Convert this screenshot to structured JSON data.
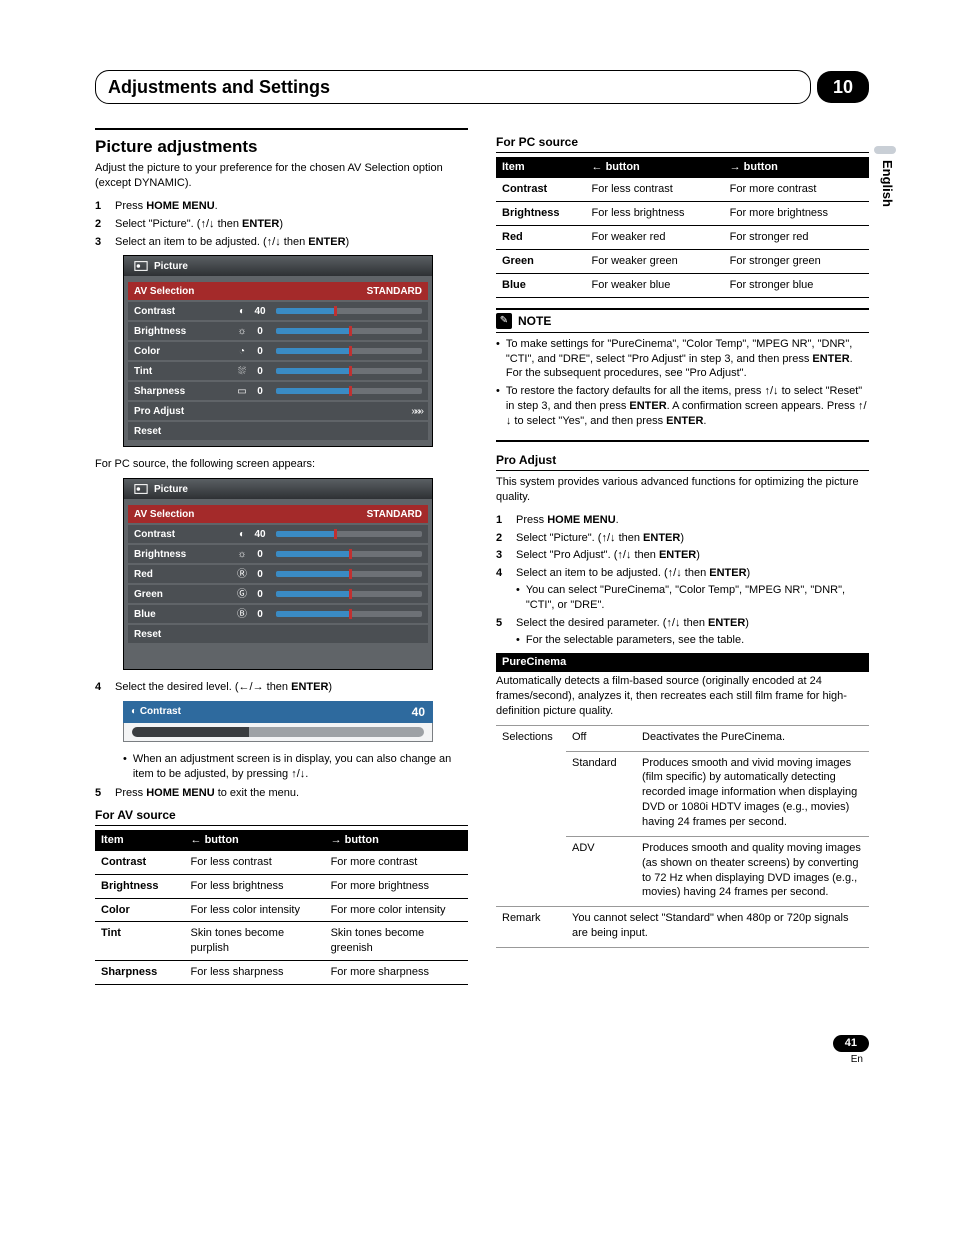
{
  "chapter": {
    "title": "Adjustments and Settings",
    "number": "10"
  },
  "language_tab": "English",
  "footer": {
    "page": "41",
    "locale": "En"
  },
  "left": {
    "section_title": "Picture adjustments",
    "intro": "Adjust the picture to your preference for the chosen AV Selection option (except DYNAMIC).",
    "steps_a": [
      {
        "n": "1",
        "pre": "Press ",
        "bold": "HOME MENU",
        "post": "."
      },
      {
        "n": "2",
        "pre": "Select \"Picture\". (",
        "arrows": "↑/↓",
        "mid": " then ",
        "bold": "ENTER",
        "post": ")"
      },
      {
        "n": "3",
        "pre": "Select an item to be adjusted. (",
        "arrows": "↑/↓",
        "mid": " then ",
        "bold": "ENTER",
        "post": ")"
      }
    ],
    "osd1": {
      "title": "Picture",
      "rows": [
        {
          "label": "AV Selection",
          "header": true,
          "right": "STANDARD"
        },
        {
          "label": "Contrast",
          "icon": "◐",
          "val": "40",
          "p": 40
        },
        {
          "label": "Brightness",
          "icon": "☼",
          "val": "0",
          "p": 50
        },
        {
          "label": "Color",
          "icon": "◔",
          "val": "0",
          "p": 50
        },
        {
          "label": "Tint",
          "icon": "⛆",
          "val": "0",
          "p": 50
        },
        {
          "label": "Sharpness",
          "icon": "▭",
          "val": "0",
          "p": 50
        },
        {
          "label": "Pro Adjust",
          "arrows": "»»»"
        },
        {
          "label": "Reset"
        }
      ]
    },
    "pc_caption": "For PC source, the following screen appears:",
    "osd2": {
      "title": "Picture",
      "rows": [
        {
          "label": "AV Selection",
          "header": true,
          "right": "STANDARD"
        },
        {
          "label": "Contrast",
          "icon": "◐",
          "val": "40",
          "p": 40
        },
        {
          "label": "Brightness",
          "icon": "☼",
          "val": "0",
          "p": 50
        },
        {
          "label": "Red",
          "icon": "Ⓡ",
          "val": "0",
          "p": 50
        },
        {
          "label": "Green",
          "icon": "Ⓖ",
          "val": "0",
          "p": 50
        },
        {
          "label": "Blue",
          "icon": "Ⓑ",
          "val": "0",
          "p": 50
        },
        {
          "label": "Reset"
        }
      ],
      "trailing_empty": true
    },
    "steps_b": [
      {
        "n": "4",
        "pre": "Select the desired level. (",
        "arrows": "←/→",
        "mid": " then ",
        "bold": "ENTER",
        "post": ")"
      }
    ],
    "big_slider": {
      "icon": "◐",
      "label": "Contrast",
      "value": "40"
    },
    "after_slider_note": "When an adjustment screen is in display, you can also change an item to be adjusted, by pressing ↑/↓.",
    "steps_c": [
      {
        "n": "5",
        "pre": "Press ",
        "bold": "HOME MENU",
        "post": " to exit the menu."
      }
    ],
    "av_table": {
      "title": "For AV source",
      "headers": [
        "Item",
        "← button",
        "→ button"
      ],
      "rows": [
        [
          "Contrast",
          "For less contrast",
          "For more contrast"
        ],
        [
          "Brightness",
          "For less brightness",
          "For more brightness"
        ],
        [
          "Color",
          "For less color intensity",
          "For more color intensity"
        ],
        [
          "Tint",
          "Skin tones become purplish",
          "Skin tones become greenish"
        ],
        [
          "Sharpness",
          "For less sharpness",
          "For more sharpness"
        ]
      ]
    }
  },
  "right": {
    "pc_table": {
      "title": "For PC source",
      "headers": [
        "Item",
        "← button",
        "→ button"
      ],
      "rows": [
        [
          "Contrast",
          "For less contrast",
          "For more contrast"
        ],
        [
          "Brightness",
          "For less brightness",
          "For more brightness"
        ],
        [
          "Red",
          "For weaker red",
          "For stronger red"
        ],
        [
          "Green",
          "For weaker green",
          "For stronger green"
        ],
        [
          "Blue",
          "For weaker blue",
          "For stronger blue"
        ]
      ]
    },
    "note_label": "NOTE",
    "notes": [
      "To make settings for \"PureCinema\", \"Color Temp\", \"MPEG NR\", \"DNR\", \"CTI\", and \"DRE\", select \"Pro Adjust\" in step 3, and then press ENTER. For the subsequent procedures, see \"Pro Adjust\".",
      "To restore the factory defaults for all the items, press ↑/↓ to select \"Reset\" in step 3, and then press ENTER. A confirmation screen appears. Press ↑/↓ to select \"Yes\", and then press ENTER."
    ],
    "proadjust": {
      "title": "Pro Adjust",
      "intro": "This system provides various advanced functions for optimizing the picture quality.",
      "steps": [
        {
          "n": "1",
          "pre": "Press ",
          "bold": "HOME MENU",
          "post": "."
        },
        {
          "n": "2",
          "pre": "Select \"Picture\". (",
          "arrows": "↑/↓",
          "mid": " then ",
          "bold": "ENTER",
          "post": ")"
        },
        {
          "n": "3",
          "pre": "Select \"Pro Adjust\". (",
          "arrows": "↑/↓",
          "mid": " then ",
          "bold": "ENTER",
          "post": ")"
        },
        {
          "n": "4",
          "pre": "Select an item to be adjusted. (",
          "arrows": "↑/↓",
          "mid": " then ",
          "bold": "ENTER",
          "post": ")",
          "sub": "You can select \"PureCinema\", \"Color Temp\", \"MPEG NR\", \"DNR\", \"CTI\", or \"DRE\"."
        },
        {
          "n": "5",
          "pre": "Select the desired parameter. (",
          "arrows": "↑/↓",
          "mid": " then ",
          "bold": "ENTER",
          "post": ")",
          "sub": "For the selectable parameters, see the table."
        }
      ]
    },
    "purecinema": {
      "bar": "PureCinema",
      "intro": "Automatically detects a film-based source (originally encoded at 24 frames/second), analyzes it, then recreates each still film frame for high-definition picture quality.",
      "selections_label": "Selections",
      "options": [
        {
          "name": "Off",
          "desc": "Deactivates the PureCinema."
        },
        {
          "name": "Standard",
          "desc": "Produces smooth and vivid moving images (film specific) by automatically detecting recorded image information when displaying DVD or 1080i HDTV images (e.g., movies) having 24 frames per second."
        },
        {
          "name": "ADV",
          "desc": "Produces smooth and quality moving images (as shown on theater screens) by converting to 72 Hz when displaying DVD images (e.g., movies) having 24 frames per second."
        }
      ],
      "remark_label": "Remark",
      "remark": "You cannot select \"Standard\" when 480p or 720p signals are being input."
    }
  }
}
